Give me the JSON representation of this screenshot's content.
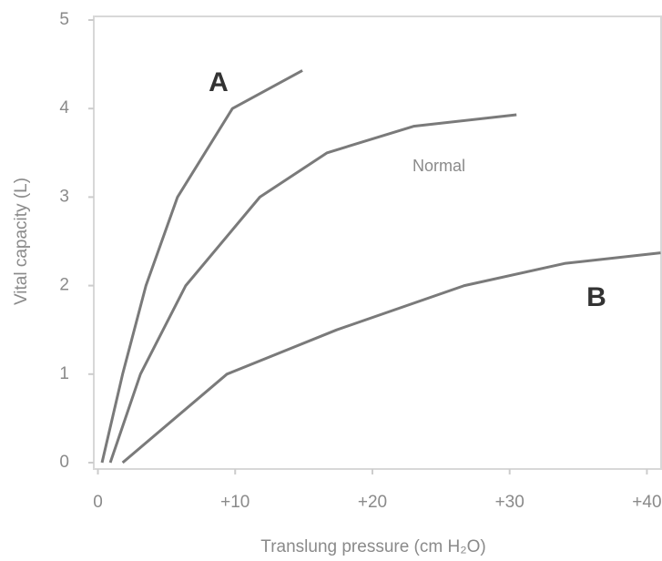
{
  "chart_data": {
    "type": "line",
    "x_label": "Translung pressure (cm H₂O)",
    "y_label": "Vital capacity (L)",
    "xlim": [
      -0.3,
      41.1
    ],
    "ylim": [
      0,
      5
    ],
    "xticks": [
      0,
      {
        "value": 10,
        "label": "+10"
      },
      {
        "value": 20,
        "label": "+20"
      },
      {
        "value": 30,
        "label": "+30"
      },
      {
        "value": 40,
        "label": "+40"
      }
    ],
    "yticks": [
      0,
      1,
      2,
      3,
      4,
      5
    ],
    "grid": false,
    "series": [
      {
        "name": "A",
        "color": "#7a7a7a",
        "x": [
          0.3,
          1.8,
          3.5,
          5.8,
          9.8,
          14.9
        ],
        "values": [
          0,
          1,
          2,
          3,
          4,
          4.43
        ]
      },
      {
        "name": "Normal",
        "color": "#7a7a7a",
        "x": [
          0.9,
          3.1,
          6.4,
          11.8,
          16.7,
          23,
          30.5
        ],
        "values": [
          0,
          1,
          2,
          3,
          3.5,
          3.8,
          3.93
        ]
      },
      {
        "name": "B",
        "color": "#7a7a7a",
        "x": [
          1.8,
          9.4,
          17.4,
          26.7,
          34,
          41
        ],
        "values": [
          0,
          1,
          1.5,
          2,
          2.25,
          2.37
        ]
      }
    ]
  }
}
